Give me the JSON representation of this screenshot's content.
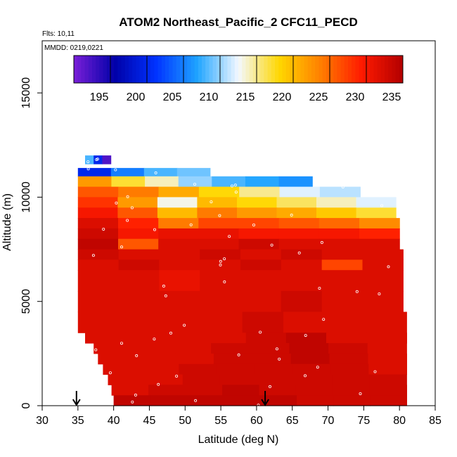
{
  "chart_data": {
    "type": "heatmap",
    "title": "ATOM2 Northeast_Pacific_2 CFC11_PECD",
    "flights_label": "Flts: 10,11",
    "dates_label": "MMDD: 0219,0221",
    "xlabel": "Latitude (deg N)",
    "ylabel": "Altitude (m)",
    "xlim": [
      30,
      85
    ],
    "ylim": [
      0,
      17500
    ],
    "x_ticks": [
      30,
      35,
      40,
      45,
      50,
      55,
      60,
      65,
      70,
      75,
      80,
      85
    ],
    "y_ticks": [
      0,
      5000,
      10000,
      15000
    ],
    "color_scale": {
      "min": 190,
      "max": 235,
      "ticks": [
        195,
        200,
        205,
        210,
        215,
        220,
        225,
        230,
        235
      ],
      "colors": [
        "#7a1fd8",
        "#0000a8",
        "#0033ff",
        "#1fa4ff",
        "#f3f8ff",
        "#ffd700",
        "#ff7f00",
        "#ff1a00",
        "#b20000"
      ]
    },
    "markers": {
      "description": "flight transect arrows",
      "latitudes": [
        34.8,
        61.2
      ]
    },
    "layers": [
      {
        "y0": 11600,
        "y1": 12000,
        "x0": 36.0,
        "x1": 39.6,
        "values": [
          208,
          200,
          192
        ]
      },
      {
        "y0": 11000,
        "y1": 11400,
        "x0": 35.0,
        "x1": 53.5,
        "values": [
          200,
          205,
          208,
          209
        ]
      },
      {
        "y0": 10500,
        "y1": 11000,
        "x0": 35.0,
        "x1": 67.8,
        "values": [
          222,
          217,
          214,
          210,
          208,
          207,
          206
        ]
      },
      {
        "y0": 10000,
        "y1": 10500,
        "x0": 35.0,
        "x1": 74.5,
        "values": [
          226,
          224,
          221,
          218,
          215,
          212,
          211
        ]
      },
      {
        "y0": 9500,
        "y1": 10000,
        "x0": 35.0,
        "x1": 79.5,
        "values": [
          228,
          222,
          213,
          220,
          218,
          216,
          214,
          212
        ]
      },
      {
        "y0": 9000,
        "y1": 9500,
        "x0": 35.0,
        "x1": 79.5,
        "values": [
          230,
          226,
          220,
          224,
          222,
          221,
          219,
          217
        ]
      },
      {
        "y0": 8500,
        "y1": 9000,
        "x0": 35.0,
        "x1": 80.0,
        "values": [
          232,
          229,
          224,
          227,
          227,
          226,
          225,
          223
        ]
      },
      {
        "y0": 8000,
        "y1": 8500,
        "x0": 35.0,
        "x1": 80.0,
        "values": [
          233,
          230,
          231,
          231,
          230,
          230,
          230,
          229
        ]
      },
      {
        "y0": 7500,
        "y1": 8000,
        "x0": 35.0,
        "x1": 80.0,
        "values": [
          234,
          226,
          232,
          232,
          233,
          232,
          232,
          232
        ]
      },
      {
        "y0": 7000,
        "y1": 7500,
        "x0": 35.0,
        "x1": 80.5,
        "values": [
          233,
          232,
          232,
          233,
          232,
          233,
          232,
          232
        ]
      },
      {
        "y0": 6500,
        "y1": 7000,
        "x0": 35.0,
        "x1": 80.5,
        "values": [
          232,
          233,
          232,
          232,
          233,
          232,
          227,
          232
        ]
      },
      {
        "y0": 5500,
        "y1": 6500,
        "x0": 35.0,
        "x1": 80.5,
        "values": [
          232,
          232,
          231,
          232,
          232,
          232,
          232,
          232
        ]
      },
      {
        "y0": 4500,
        "y1": 5500,
        "x0": 35.0,
        "x1": 80.5,
        "values": [
          232,
          232,
          232,
          232,
          232,
          233,
          232,
          232
        ]
      },
      {
        "y0": 3500,
        "y1": 4500,
        "x0": 35.0,
        "x1": 81.0,
        "values": [
          232,
          232,
          232,
          232,
          233,
          232,
          232,
          232
        ]
      },
      {
        "y0": 3000,
        "y1": 3500,
        "x0": 36.0,
        "x1": 81.0,
        "values": [
          232,
          232,
          232,
          232,
          233,
          234,
          232,
          232
        ]
      },
      {
        "y0": 2500,
        "y1": 3000,
        "x0": 37.2,
        "x1": 81.0,
        "values": [
          232,
          232,
          232,
          233,
          233,
          234,
          233,
          232
        ]
      },
      {
        "y0": 2000,
        "y1": 2500,
        "x0": 37.8,
        "x1": 81.0,
        "values": [
          232,
          232,
          232,
          233,
          233,
          234,
          233,
          232
        ]
      },
      {
        "y0": 1500,
        "y1": 2000,
        "x0": 38.5,
        "x1": 81.0,
        "values": [
          232,
          232,
          233,
          233,
          233,
          233,
          233,
          232
        ]
      },
      {
        "y0": 1000,
        "y1": 1500,
        "x0": 39.2,
        "x1": 81.0,
        "values": [
          232,
          232,
          233,
          233,
          233,
          233,
          233,
          233
        ]
      },
      {
        "y0": 500,
        "y1": 1000,
        "x0": 39.7,
        "x1": 81.0,
        "values": [
          232,
          233,
          233,
          234,
          233,
          233,
          233,
          233
        ]
      },
      {
        "y0": 0,
        "y1": 500,
        "x0": 40.0,
        "x1": 81.0,
        "values": [
          234,
          234,
          234,
          234,
          234,
          233,
          233,
          233
        ]
      }
    ]
  }
}
